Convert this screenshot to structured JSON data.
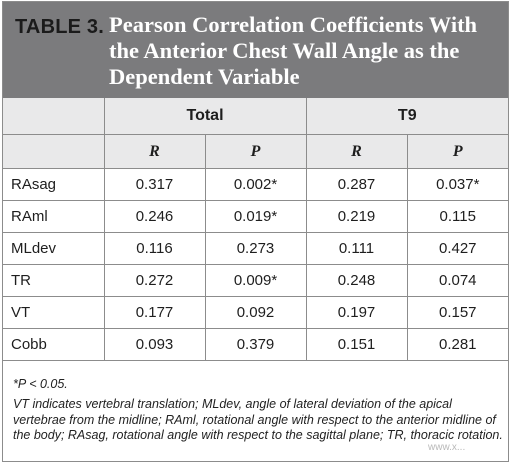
{
  "table": {
    "label": "TABLE 3.",
    "title": "Pearson Correlation Coefficients With the Anterior Chest Wall Angle as the Dependent Variable",
    "groups": [
      "Total",
      "T9"
    ],
    "subheaders": [
      "R",
      "P",
      "R",
      "P"
    ],
    "rows": [
      {
        "label": "RAsag",
        "values": [
          "0.317",
          "0.002*",
          "0.287",
          "0.037*"
        ]
      },
      {
        "label": "RAml",
        "values": [
          "0.246",
          "0.019*",
          "0.219",
          "0.115"
        ]
      },
      {
        "label": "MLdev",
        "values": [
          "0.116",
          "0.273",
          "0.111",
          "0.427"
        ]
      },
      {
        "label": "TR",
        "values": [
          "0.272",
          "0.009*",
          "0.248",
          "0.074"
        ]
      },
      {
        "label": "VT",
        "values": [
          "0.177",
          "0.092",
          "0.197",
          "0.157"
        ]
      },
      {
        "label": "Cobb",
        "values": [
          "0.093",
          "0.379",
          "0.151",
          "0.281"
        ]
      }
    ]
  },
  "footnotes": {
    "significance": "*P < 0.05.",
    "abbreviations": "VT indicates vertebral translation; MLdev, angle of lateral deviation of the apical vertebrae from the midline; RAml, rotational angle with respect to the anterior midline of the body; RAsag, rotational angle with respect to the sagittal plane; TR, thoracic rotation."
  },
  "watermark": "www.x..."
}
